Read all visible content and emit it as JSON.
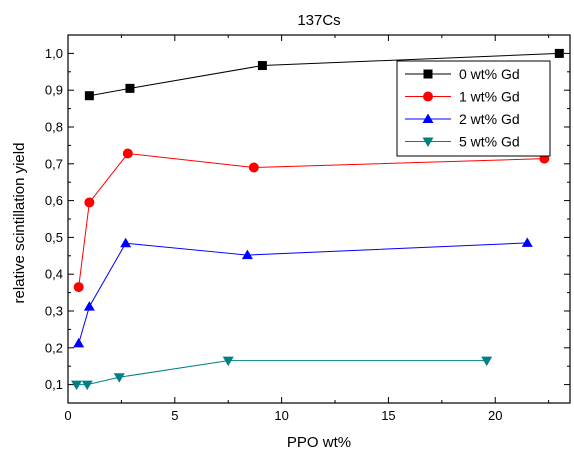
{
  "chart_data": {
    "type": "line",
    "title": "137Cs",
    "xlabel": "PPO wt%",
    "ylabel": "relative scintillation yield",
    "xlim": [
      0,
      23.5
    ],
    "ylim": [
      0.05,
      1.05
    ],
    "x_ticks": [
      0,
      5,
      10,
      15,
      20
    ],
    "x_tick_labels": [
      "0",
      "5",
      "10",
      "15",
      "20"
    ],
    "y_ticks": [
      0.1,
      0.2,
      0.3,
      0.4,
      0.5,
      0.6,
      0.7,
      0.8,
      0.9,
      1.0
    ],
    "y_tick_labels": [
      "0,1",
      "0,2",
      "0,3",
      "0,4",
      "0,5",
      "0,6",
      "0,7",
      "0,8",
      "0,9",
      "1,0"
    ],
    "grid": false,
    "legend_position": "top-right",
    "series": [
      {
        "name": "0 wt% Gd",
        "color": "#000000",
        "marker": "square",
        "x": [
          1.0,
          2.9,
          9.1,
          23.0
        ],
        "y": [
          0.885,
          0.905,
          0.967,
          1.0
        ]
      },
      {
        "name": "1 wt% Gd",
        "color": "#ff0000",
        "marker": "circle",
        "x": [
          0.5,
          1.0,
          2.8,
          8.7,
          22.3
        ],
        "y": [
          0.365,
          0.595,
          0.728,
          0.69,
          0.714
        ]
      },
      {
        "name": "2 wt% Gd",
        "color": "#0000ff",
        "marker": "triangle-up",
        "x": [
          0.5,
          1.0,
          2.7,
          8.4,
          21.5
        ],
        "y": [
          0.212,
          0.312,
          0.484,
          0.452,
          0.485
        ]
      },
      {
        "name": "5 wt% Gd",
        "color": "#008080",
        "marker": "triangle-down",
        "x": [
          0.4,
          0.9,
          2.4,
          7.5,
          19.6
        ],
        "y": [
          0.1,
          0.1,
          0.12,
          0.165,
          0.165
        ]
      }
    ]
  }
}
